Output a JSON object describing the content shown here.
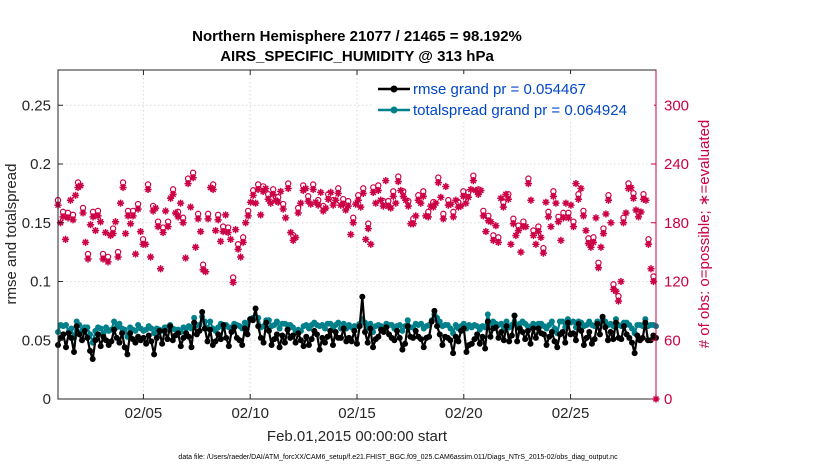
{
  "chart_data": {
    "type": "line",
    "title_line1": "Northern Hemisphere 21077 / 21465 = 98.192%",
    "title_line2": "AIRS_SPECIFIC_HUMIDITY @ 313 hPa",
    "xlabel": "Feb.01,2015 00:00:00 start",
    "ylabel": "rmse and totalspread",
    "y2label": "# of obs: o=possible; ∗=evaluated",
    "xlim": [
      1,
      29
    ],
    "ylim": [
      0,
      0.28
    ],
    "y2lim": [
      0,
      336
    ],
    "x_ticks": [
      5,
      10,
      15,
      20,
      25
    ],
    "x_tick_labels": [
      "02/05",
      "02/10",
      "02/15",
      "02/20",
      "02/25"
    ],
    "y_ticks": [
      0,
      0.05,
      0.1,
      0.15,
      0.2,
      0.25
    ],
    "y_tick_labels": [
      "0",
      "0.05",
      "0.1",
      "0.15",
      "0.2",
      "0.25"
    ],
    "y2_ticks": [
      0,
      60,
      120,
      180,
      240,
      300
    ],
    "y2_tick_labels": [
      "0",
      "60",
      "120",
      "180",
      "240",
      "300"
    ],
    "footer": "data file: /Users/raeder/DAI/ATM_forcXX/CAM6_setup/f.e21.FHIST_BGC.f09_025.CAM6assim.011/Diags_NTrS_2015-02/obs_diag_output.nc",
    "colors": {
      "rmse": "#000000",
      "spread": "#00808a",
      "obs": "#cc0044",
      "legend_text": "#0047c8"
    },
    "series": [
      {
        "name": "rmse grand pr = 0.054467",
        "values": [
          0.046,
          0.052,
          0.055,
          0.044,
          0.056,
          0.052,
          0.04,
          0.062,
          0.055,
          0.05,
          0.058,
          0.052,
          0.041,
          0.034,
          0.05,
          0.055,
          0.045,
          0.053,
          0.05,
          0.046,
          0.049,
          0.059,
          0.052,
          0.048,
          0.056,
          0.044,
          0.038,
          0.056,
          0.051,
          0.048,
          0.053,
          0.05,
          0.052,
          0.047,
          0.054,
          0.049,
          0.038,
          0.052,
          0.058,
          0.047,
          0.058,
          0.051,
          0.062,
          0.05,
          0.054,
          0.056,
          0.045,
          0.052,
          0.056,
          0.053,
          0.044,
          0.065,
          0.055,
          0.058,
          0.074,
          0.06,
          0.049,
          0.059,
          0.046,
          0.049,
          0.055,
          0.051,
          0.063,
          0.052,
          0.045,
          0.057,
          0.061,
          0.052,
          0.05,
          0.046,
          0.06,
          0.055,
          0.068,
          0.067,
          0.077,
          0.062,
          0.052,
          0.048,
          0.065,
          0.058,
          0.046,
          0.051,
          0.055,
          0.044,
          0.054,
          0.048,
          0.059,
          0.052,
          0.054,
          0.048,
          0.056,
          0.05,
          0.045,
          0.053,
          0.046,
          0.051,
          0.058,
          0.055,
          0.042,
          0.052,
          0.048,
          0.053,
          0.058,
          0.046,
          0.057,
          0.052,
          0.052,
          0.06,
          0.049,
          0.052,
          0.049,
          0.058,
          0.047,
          0.062,
          0.087,
          0.057,
          0.048,
          0.06,
          0.044,
          0.051,
          0.053,
          0.059,
          0.057,
          0.061,
          0.055,
          0.052,
          0.05,
          0.058,
          0.052,
          0.042,
          0.047,
          0.062,
          0.053,
          0.052,
          0.058,
          0.053,
          0.051,
          0.044,
          0.052,
          0.053,
          0.066,
          0.075,
          0.062,
          0.055,
          0.046,
          0.053,
          0.052,
          0.05,
          0.039,
          0.053,
          0.049,
          0.058,
          0.06,
          0.04,
          0.046,
          0.047,
          0.051,
          0.055,
          0.047,
          0.053,
          0.043,
          0.066,
          0.053,
          0.06,
          0.061,
          0.052,
          0.057,
          0.05,
          0.062,
          0.049,
          0.054,
          0.071,
          0.049,
          0.06,
          0.057,
          0.051,
          0.058,
          0.047,
          0.06,
          0.052,
          0.06,
          0.056,
          0.055,
          0.046,
          0.053,
          0.057,
          0.049,
          0.044,
          0.055,
          0.057,
          0.048,
          0.065,
          0.055,
          0.056,
          0.05,
          0.064,
          0.058,
          0.046,
          0.052,
          0.057,
          0.047,
          0.051,
          0.064,
          0.055,
          0.07,
          0.061,
          0.05,
          0.057,
          0.051,
          0.065,
          0.052,
          0.051,
          0.062,
          0.055,
          0.052,
          0.048,
          0.039,
          0.054,
          0.05,
          0.052,
          0.065,
          0.05,
          0.05,
          0.054,
          0.052
        ]
      },
      {
        "name": "totalspread grand pr = 0.064924",
        "values": [
          0.057,
          0.063,
          0.062,
          0.063,
          0.057,
          0.06,
          0.052,
          0.066,
          0.063,
          0.058,
          0.061,
          0.061,
          0.055,
          0.048,
          0.058,
          0.061,
          0.06,
          0.056,
          0.061,
          0.058,
          0.059,
          0.066,
          0.061,
          0.064,
          0.06,
          0.059,
          0.053,
          0.061,
          0.059,
          0.058,
          0.063,
          0.06,
          0.058,
          0.059,
          0.062,
          0.06,
          0.056,
          0.06,
          0.059,
          0.058,
          0.061,
          0.061,
          0.063,
          0.06,
          0.059,
          0.059,
          0.057,
          0.061,
          0.06,
          0.062,
          0.06,
          0.069,
          0.063,
          0.063,
          0.07,
          0.066,
          0.06,
          0.066,
          0.06,
          0.058,
          0.061,
          0.064,
          0.061,
          0.063,
          0.061,
          0.061,
          0.064,
          0.063,
          0.062,
          0.06,
          0.065,
          0.064,
          0.068,
          0.069,
          0.07,
          0.069,
          0.061,
          0.062,
          0.067,
          0.067,
          0.062,
          0.063,
          0.066,
          0.06,
          0.064,
          0.064,
          0.063,
          0.063,
          0.061,
          0.058,
          0.059,
          0.058,
          0.062,
          0.063,
          0.06,
          0.063,
          0.065,
          0.063,
          0.062,
          0.063,
          0.06,
          0.064,
          0.064,
          0.06,
          0.063,
          0.065,
          0.06,
          0.064,
          0.06,
          0.063,
          0.061,
          0.062,
          0.062,
          0.064,
          0.068,
          0.065,
          0.061,
          0.064,
          0.057,
          0.062,
          0.063,
          0.062,
          0.061,
          0.064,
          0.063,
          0.063,
          0.06,
          0.062,
          0.063,
          0.058,
          0.062,
          0.067,
          0.061,
          0.061,
          0.064,
          0.063,
          0.064,
          0.06,
          0.062,
          0.063,
          0.067,
          0.072,
          0.069,
          0.066,
          0.062,
          0.063,
          0.063,
          0.06,
          0.056,
          0.063,
          0.06,
          0.062,
          0.064,
          0.06,
          0.063,
          0.061,
          0.063,
          0.062,
          0.059,
          0.062,
          0.061,
          0.072,
          0.064,
          0.066,
          0.064,
          0.063,
          0.064,
          0.06,
          0.066,
          0.061,
          0.063,
          0.071,
          0.062,
          0.064,
          0.066,
          0.064,
          0.062,
          0.061,
          0.064,
          0.063,
          0.064,
          0.064,
          0.062,
          0.06,
          0.063,
          0.066,
          0.06,
          0.056,
          0.066,
          0.066,
          0.061,
          0.068,
          0.065,
          0.066,
          0.061,
          0.066,
          0.065,
          0.062,
          0.063,
          0.066,
          0.063,
          0.062,
          0.066,
          0.064,
          0.068,
          0.066,
          0.063,
          0.064,
          0.062,
          0.068,
          0.063,
          0.062,
          0.065,
          0.065,
          0.063,
          0.06,
          0.056,
          0.063,
          0.063,
          0.062,
          0.068,
          0.062,
          0.063,
          0.063,
          0.062
        ]
      },
      {
        "name": "obs possible (o) / evaluated (*)",
        "values": [
          198,
          180,
          186,
          163,
          185,
          203,
          183,
          208,
          216,
          218,
          190,
          160,
          143,
          178,
          186,
          172,
          187,
          181,
          143,
          170,
          140,
          167,
          169,
          181,
          145,
          200,
          216,
          169,
          187,
          179,
          187,
          148,
          194,
          171,
          158,
          158,
          214,
          145,
          192,
          195,
          176,
          133,
          170,
          192,
          176,
          205,
          209,
          190,
          186,
          200,
          180,
          144,
          220,
          196,
          226,
          155,
          184,
          171,
          132,
          130,
          184,
          216,
          214,
          172,
          183,
          161,
          171,
          188,
          170,
          163,
          119,
          173,
          153,
          145,
          160,
          180,
          187,
          201,
          208,
          200,
          214,
          188,
          212,
          215,
          204,
          200,
          209,
          203,
          201,
          212,
          194,
          185,
          215,
          170,
          162,
          165,
          190,
          200,
          213,
          215,
          202,
          199,
          214,
          201,
          198,
          211,
          192,
          195,
          204,
          211,
          198,
          203,
          210,
          198,
          199,
          193,
          197,
          168,
          180,
          199,
          203,
          196,
          210,
          163,
          174,
          158,
          211,
          200,
          213,
          203,
          197,
          223,
          197,
          195,
          207,
          200,
          222,
          213,
          207,
          203,
          197,
          179,
          179,
          187,
          203,
          200,
          207,
          187,
          186,
          197,
          196,
          200,
          221,
          206,
          184,
          217,
          198,
          199,
          186,
          203,
          196,
          197,
          207,
          200,
          206,
          214,
          223,
          213,
          209,
          213,
          187,
          171,
          182,
          181,
          162,
          177,
          160,
          205,
          196,
          209,
          204,
          158,
          179,
          167,
          172,
          150,
          176,
          176,
          220,
          203,
          167,
          158,
          171,
          165,
          149,
          201,
          186,
          176,
          207,
          200,
          181,
          162,
          185,
          200,
          185,
          198,
          176,
          220,
          204,
          215,
          187,
          172,
          159,
          155,
          160,
          185,
          134,
          155,
          169,
          189,
          203,
          180,
          112,
          110,
          100,
          120,
          180,
          190,
          215,
          216,
          205,
          193,
          186,
          191,
          204,
          203,
          158,
          133,
          120,
          0
        ]
      }
    ]
  }
}
